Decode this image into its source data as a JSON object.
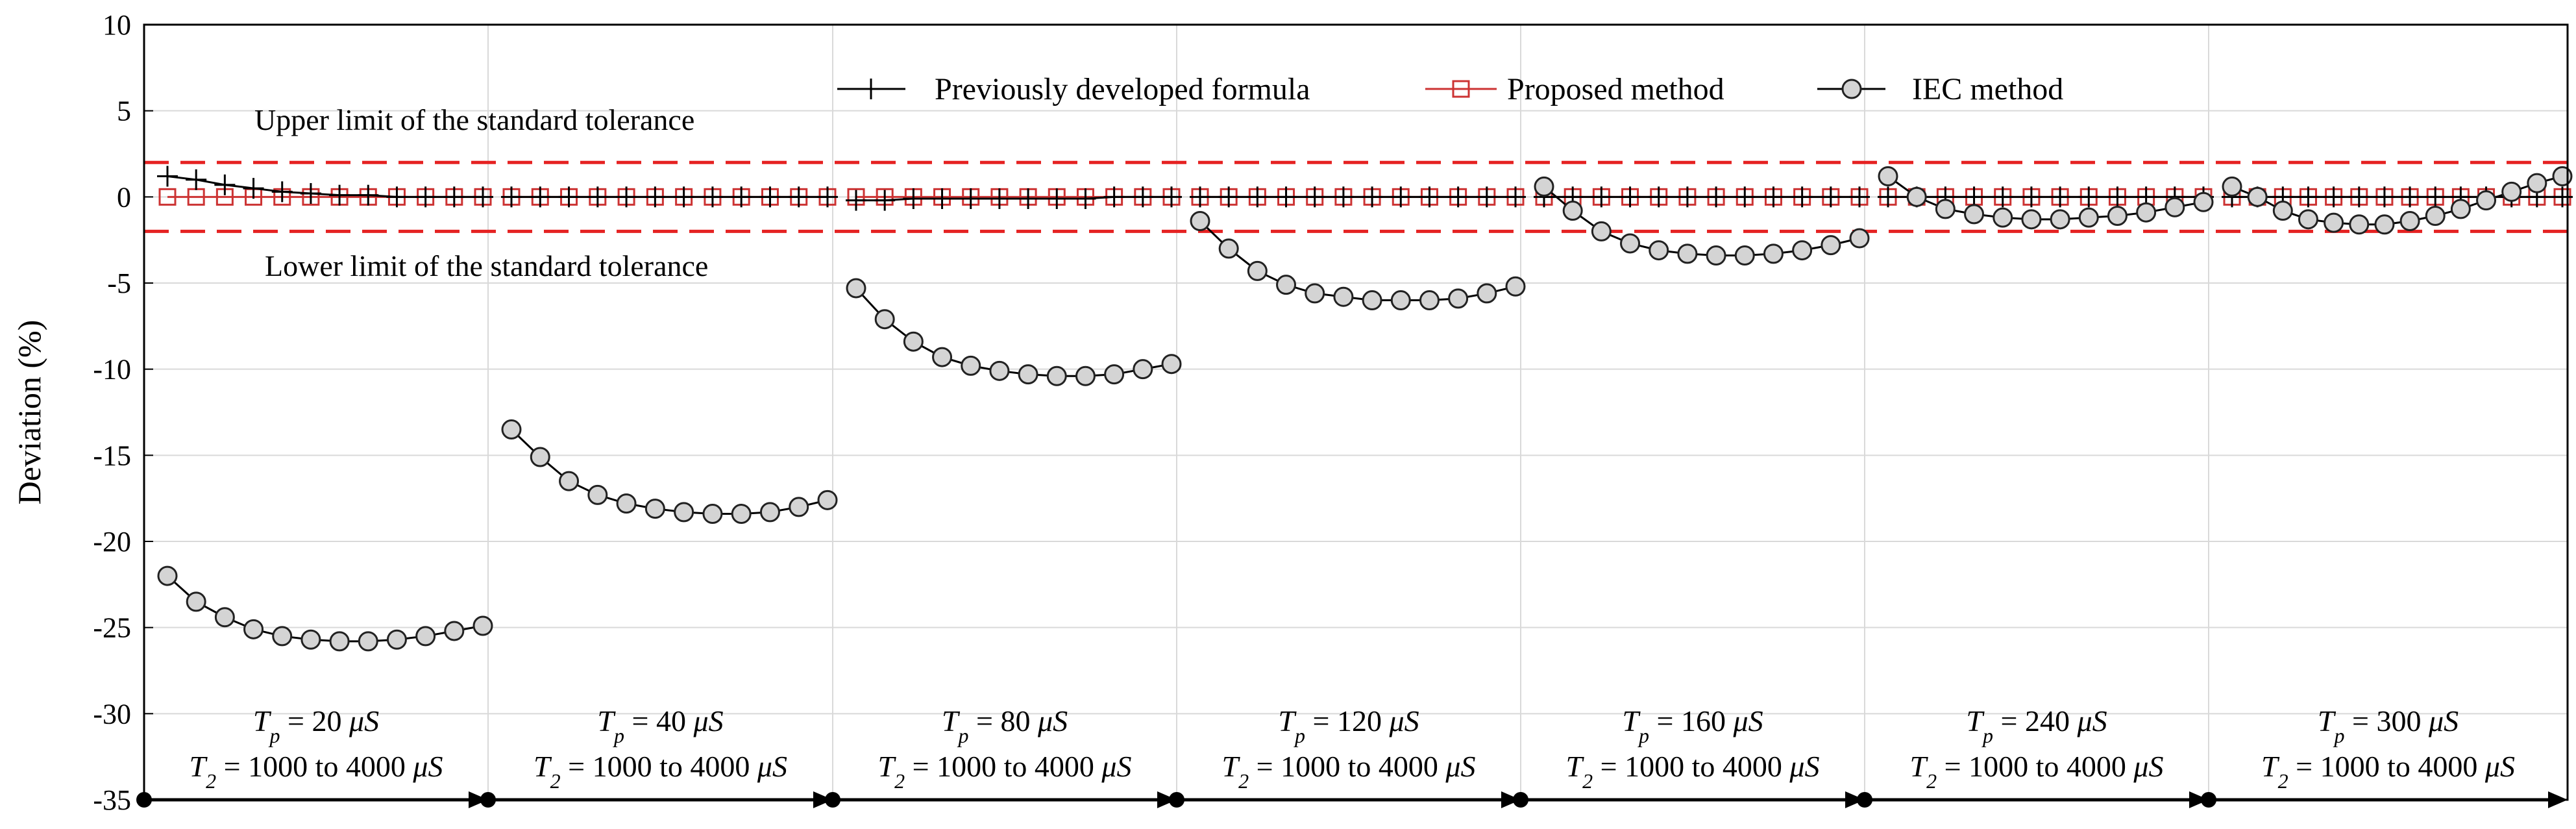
{
  "chart_data": {
    "type": "line",
    "title": "",
    "xlabel": "",
    "ylabel": "Deviation (%)",
    "ylim": [
      -35,
      10
    ],
    "yticks": [
      10,
      5,
      0,
      -5,
      -10,
      -15,
      -20,
      -25,
      -30,
      -35
    ],
    "grid": true,
    "legend_position": "top-center",
    "legend": [
      {
        "name": "Previously developed formula",
        "marker": "plus",
        "color": "#000000"
      },
      {
        "name": "Proposed method",
        "marker": "square",
        "color": "#cc3333"
      },
      {
        "name": "IEC method",
        "marker": "circle",
        "color": "#000000"
      }
    ],
    "annotations": {
      "upper": {
        "text": "Upper limit of the standard tolerance",
        "value": 2
      },
      "lower": {
        "text": "Lower limit of the standard tolerance",
        "value": -2
      }
    },
    "groups": [
      {
        "tp_prefix": "T",
        "tp_sub": "p",
        "tp_rest": " = 20 ",
        "t2_prefix": "T",
        "t2_sub": "2",
        "t2_rest": " = 1000 to 4000 ",
        "unit_mu": "μ",
        "unit_s": "S",
        "iec": [
          -22.0,
          -23.5,
          -24.4,
          -25.1,
          -25.5,
          -25.7,
          -25.8,
          -25.8,
          -25.7,
          -25.5,
          -25.2,
          -24.9
        ],
        "previous": [
          1.2,
          1.0,
          0.7,
          0.5,
          0.3,
          0.2,
          0.1,
          0.1,
          0.0,
          0.0,
          0.0,
          0.0
        ],
        "proposed": [
          0,
          0,
          0,
          0,
          0,
          0,
          0,
          0,
          0,
          0,
          0,
          0
        ]
      },
      {
        "tp_prefix": "T",
        "tp_sub": "p",
        "tp_rest": " = 40 ",
        "t2_prefix": "T",
        "t2_sub": "2",
        "t2_rest": " = 1000 to 4000 ",
        "unit_mu": "μ",
        "unit_s": "S",
        "iec": [
          -13.5,
          -15.1,
          -16.5,
          -17.3,
          -17.8,
          -18.1,
          -18.3,
          -18.4,
          -18.4,
          -18.3,
          -18.0,
          -17.6
        ],
        "previous": [
          0,
          0,
          0,
          0,
          0,
          0,
          0,
          0,
          0,
          0,
          0,
          0
        ],
        "proposed": [
          0,
          0,
          0,
          0,
          0,
          0,
          0,
          0,
          0,
          0,
          0,
          0
        ]
      },
      {
        "tp_prefix": "T",
        "tp_sub": "p",
        "tp_rest": " = 80 ",
        "t2_prefix": "T",
        "t2_sub": "2",
        "t2_rest": " = 1000 to 4000 ",
        "unit_mu": "μ",
        "unit_s": "S",
        "iec": [
          -5.3,
          -7.1,
          -8.4,
          -9.3,
          -9.8,
          -10.1,
          -10.3,
          -10.4,
          -10.4,
          -10.3,
          -10.0,
          -9.7
        ],
        "previous": [
          -0.2,
          -0.2,
          -0.1,
          -0.1,
          -0.1,
          -0.1,
          -0.1,
          -0.1,
          -0.1,
          0.0,
          0.0,
          0.0
        ],
        "proposed": [
          0,
          0,
          0,
          0,
          0,
          0,
          0,
          0,
          0,
          0,
          0,
          0
        ]
      },
      {
        "tp_prefix": "T",
        "tp_sub": "p",
        "tp_rest": " = 120 ",
        "t2_prefix": "T",
        "t2_sub": "2",
        "t2_rest": " = 1000 to 4000 ",
        "unit_mu": "μ",
        "unit_s": "S",
        "iec": [
          -1.4,
          -3.0,
          -4.3,
          -5.1,
          -5.6,
          -5.8,
          -6.0,
          -6.0,
          -6.0,
          -5.9,
          -5.6,
          -5.2
        ],
        "previous": [
          0,
          0,
          0,
          0,
          0,
          0,
          0,
          0,
          0,
          0,
          0,
          0
        ],
        "proposed": [
          0,
          0,
          0,
          0,
          0,
          0,
          0,
          0,
          0,
          0,
          0,
          0
        ]
      },
      {
        "tp_prefix": "T",
        "tp_sub": "p",
        "tp_rest": " = 160 ",
        "t2_prefix": "T",
        "t2_sub": "2",
        "t2_rest": " = 1000 to 4000 ",
        "unit_mu": "μ",
        "unit_s": "S",
        "iec": [
          0.6,
          -0.8,
          -2.0,
          -2.7,
          -3.1,
          -3.3,
          -3.4,
          -3.4,
          -3.3,
          -3.1,
          -2.8,
          -2.4
        ],
        "previous": [
          0,
          0,
          0,
          0,
          0,
          0,
          0,
          0,
          0,
          0,
          0,
          0
        ],
        "proposed": [
          0,
          0,
          0,
          0,
          0,
          0,
          0,
          0,
          0,
          0,
          0,
          0
        ]
      },
      {
        "tp_prefix": "T",
        "tp_sub": "p",
        "tp_rest": " = 240 ",
        "t2_prefix": "T",
        "t2_sub": "2",
        "t2_rest": " = 1000 to 4000 ",
        "unit_mu": "μ",
        "unit_s": "S",
        "iec": [
          1.2,
          0.0,
          -0.7,
          -1.0,
          -1.2,
          -1.3,
          -1.3,
          -1.2,
          -1.1,
          -0.9,
          -0.6,
          -0.3
        ],
        "previous": [
          0,
          0,
          0,
          0,
          0,
          0,
          0,
          0,
          0,
          0,
          0,
          0
        ],
        "proposed": [
          0,
          0,
          0,
          0,
          0,
          0,
          0,
          0,
          0,
          0,
          0,
          0
        ]
      },
      {
        "tp_prefix": "T",
        "tp_sub": "p",
        "tp_rest": " = 300 ",
        "t2_prefix": "T",
        "t2_sub": "2",
        "t2_rest": " = 1000 to 4000 ",
        "unit_mu": "μ",
        "unit_s": "S",
        "iec": [
          0.6,
          0.0,
          -0.8,
          -1.3,
          -1.5,
          -1.6,
          -1.6,
          -1.4,
          -1.1,
          -0.7,
          -0.2,
          0.3,
          0.8,
          1.2
        ],
        "previous": [
          0,
          0,
          0,
          0,
          0,
          0,
          0,
          0,
          0,
          0,
          0,
          0,
          0,
          0
        ],
        "proposed": [
          0,
          0,
          0,
          0,
          0,
          0,
          0,
          0,
          0,
          0,
          0,
          0,
          0,
          0
        ]
      }
    ]
  }
}
